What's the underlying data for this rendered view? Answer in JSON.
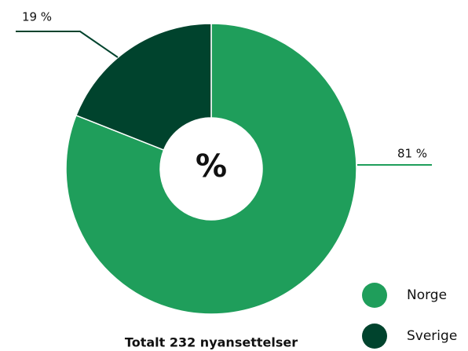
{
  "chart_data": {
    "type": "donut",
    "title": "Totalt 232 nyansettelser",
    "center_label": "%",
    "categories": [
      "Norge",
      "Sverige"
    ],
    "values": [
      81,
      19
    ],
    "value_labels": [
      "81 %",
      "19 %"
    ],
    "colors": [
      "#1f9e5b",
      "#00432d"
    ],
    "legend": "bottom-right"
  }
}
